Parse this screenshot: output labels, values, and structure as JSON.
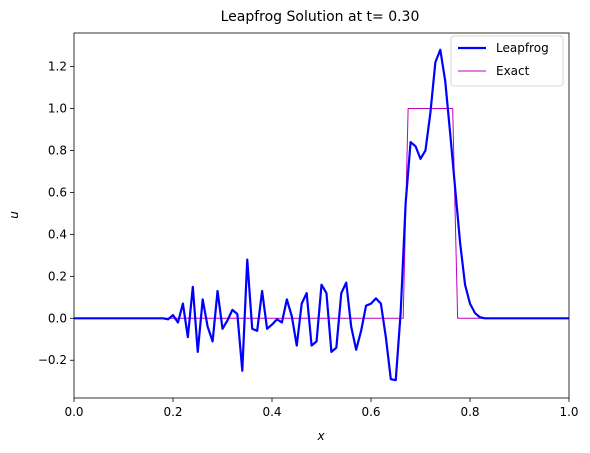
{
  "chart_data": {
    "type": "line",
    "title": "Leapfrog Solution at t= 0.30",
    "xlabel": "x",
    "ylabel": "u",
    "xlim": [
      0.0,
      1.0
    ],
    "ylim": [
      -0.38,
      1.36
    ],
    "xticks": [
      0.0,
      0.2,
      0.4,
      0.6,
      0.8,
      1.0
    ],
    "xtick_labels": [
      "0.0",
      "0.2",
      "0.4",
      "0.6",
      "0.8",
      "1.0"
    ],
    "yticks": [
      -0.2,
      0.0,
      0.2,
      0.4,
      0.6,
      0.8,
      1.0,
      1.2
    ],
    "ytick_labels": [
      "−0.2",
      "0.0",
      "0.2",
      "0.4",
      "0.6",
      "0.8",
      "1.0",
      "1.2"
    ],
    "grid": false,
    "legend_position": "top-right",
    "series": [
      {
        "name": "Leapfrog",
        "color": "#0000ff",
        "line_width": "thick",
        "x": [
          0.0,
          0.18,
          0.19,
          0.2,
          0.21,
          0.22,
          0.23,
          0.24,
          0.25,
          0.26,
          0.27,
          0.28,
          0.29,
          0.3,
          0.31,
          0.32,
          0.33,
          0.34,
          0.35,
          0.36,
          0.37,
          0.38,
          0.39,
          0.4,
          0.41,
          0.42,
          0.43,
          0.44,
          0.45,
          0.46,
          0.47,
          0.48,
          0.49,
          0.5,
          0.51,
          0.52,
          0.53,
          0.54,
          0.55,
          0.56,
          0.57,
          0.58,
          0.59,
          0.6,
          0.61,
          0.62,
          0.63,
          0.64,
          0.65,
          0.66,
          0.67,
          0.68,
          0.69,
          0.7,
          0.71,
          0.72,
          0.73,
          0.74,
          0.75,
          0.76,
          0.77,
          0.78,
          0.79,
          0.8,
          0.81,
          0.82,
          0.83,
          0.84,
          0.85,
          1.0
        ],
        "y": [
          0.0,
          0.0,
          -0.005,
          0.015,
          -0.02,
          0.07,
          -0.09,
          0.15,
          -0.16,
          0.09,
          -0.04,
          -0.11,
          0.13,
          -0.05,
          -0.01,
          0.04,
          0.02,
          -0.25,
          0.28,
          -0.05,
          -0.06,
          0.13,
          -0.05,
          -0.03,
          -0.005,
          -0.02,
          0.09,
          0.01,
          -0.13,
          0.07,
          0.12,
          -0.13,
          -0.11,
          0.16,
          0.12,
          -0.16,
          -0.14,
          0.12,
          0.17,
          -0.04,
          -0.15,
          -0.06,
          0.06,
          0.07,
          0.095,
          0.07,
          -0.09,
          -0.29,
          -0.295,
          0.03,
          0.55,
          0.84,
          0.82,
          0.76,
          0.8,
          0.98,
          1.22,
          1.28,
          1.13,
          0.88,
          0.62,
          0.36,
          0.16,
          0.07,
          0.025,
          0.005,
          0.0,
          0.0,
          0.0,
          0.0
        ]
      },
      {
        "name": "Exact",
        "color": "#bf00bf",
        "line_width": "thin",
        "x": [
          0.0,
          0.665,
          0.675,
          0.765,
          0.775,
          1.0
        ],
        "y": [
          0.0,
          0.0,
          1.0,
          1.0,
          0.0,
          0.0
        ]
      }
    ]
  }
}
